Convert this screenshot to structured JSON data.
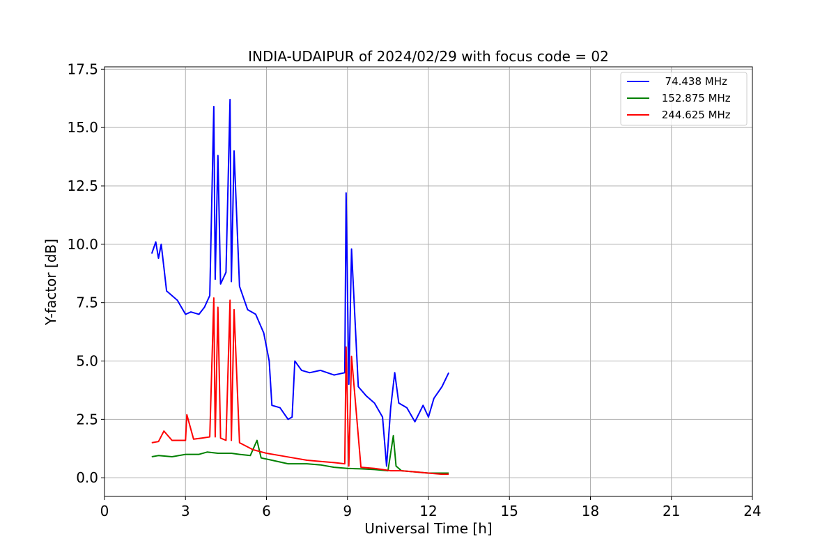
{
  "chart_data": {
    "type": "line",
    "title": "INDIA-UDAIPUR of 2024/02/29 with focus code = 02",
    "xlabel": "Universal Time [h]",
    "ylabel": "Y-factor [dB]",
    "xlim": [
      0,
      24
    ],
    "ylim": [
      -0.8,
      17.6
    ],
    "xticks": [
      0,
      3,
      6,
      9,
      12,
      15,
      18,
      21,
      24
    ],
    "xtick_labels": [
      "0",
      "3",
      "6",
      "9",
      "12",
      "15",
      "18",
      "21",
      "24"
    ],
    "yticks": [
      0,
      2.5,
      5,
      7.5,
      10,
      12.5,
      15,
      17.5
    ],
    "ytick_labels": [
      "0.0",
      "2.5",
      "5.0",
      "7.5",
      "10.0",
      "12.5",
      "15.0",
      "17.5"
    ],
    "grid": true,
    "legend_position": "top-right",
    "series": [
      {
        "name": "  74.438 MHz",
        "color": "#0000ff",
        "x": [
          1.75,
          1.9,
          2.0,
          2.1,
          2.2,
          2.3,
          2.5,
          2.7,
          2.9,
          3.0,
          3.2,
          3.5,
          3.7,
          3.9,
          4.05,
          4.1,
          4.2,
          4.3,
          4.5,
          4.65,
          4.7,
          4.8,
          5.0,
          5.3,
          5.6,
          5.9,
          6.1,
          6.2,
          6.5,
          6.8,
          6.95,
          7.05,
          7.3,
          7.6,
          8.0,
          8.5,
          8.9,
          8.95,
          9.05,
          9.15,
          9.4,
          9.7,
          10.0,
          10.3,
          10.45,
          10.6,
          10.75,
          10.9,
          11.2,
          11.5,
          11.8,
          12.0,
          12.2,
          12.5,
          12.75
        ],
        "y": [
          9.6,
          10.1,
          9.4,
          10.0,
          9.0,
          8.0,
          7.8,
          7.6,
          7.2,
          7.0,
          7.1,
          7.0,
          7.3,
          7.8,
          15.9,
          8.5,
          13.8,
          8.3,
          8.8,
          16.2,
          8.4,
          14.0,
          8.2,
          7.2,
          7.0,
          6.2,
          5.0,
          3.1,
          3.0,
          2.5,
          2.6,
          5.0,
          4.6,
          4.5,
          4.6,
          4.4,
          4.5,
          12.2,
          4.0,
          9.8,
          3.9,
          3.5,
          3.2,
          2.6,
          0.5,
          3.0,
          4.5,
          3.2,
          3.0,
          2.4,
          3.1,
          2.6,
          3.4,
          3.9,
          4.5
        ]
      },
      {
        "name": " 152.875 MHz",
        "color": "#008000",
        "x": [
          1.75,
          2.0,
          2.5,
          3.0,
          3.5,
          3.8,
          4.2,
          4.7,
          5.0,
          5.4,
          5.65,
          5.8,
          6.2,
          6.8,
          7.5,
          8.0,
          8.5,
          9.0,
          9.5,
          10.0,
          10.5,
          10.7,
          10.8,
          11.0,
          11.5,
          12.0,
          12.4,
          12.75
        ],
        "y": [
          0.9,
          0.95,
          0.9,
          1.0,
          1.0,
          1.1,
          1.05,
          1.05,
          1.0,
          0.95,
          1.6,
          0.85,
          0.75,
          0.6,
          0.6,
          0.55,
          0.45,
          0.4,
          0.38,
          0.35,
          0.3,
          1.8,
          0.5,
          0.3,
          0.25,
          0.2,
          0.2,
          0.2
        ]
      },
      {
        "name": " 244.625 MHz",
        "color": "#ff0000",
        "x": [
          1.75,
          2.0,
          2.2,
          2.5,
          3.0,
          3.05,
          3.3,
          3.6,
          3.9,
          4.05,
          4.1,
          4.2,
          4.3,
          4.5,
          4.65,
          4.7,
          4.8,
          5.0,
          5.5,
          6.0,
          6.5,
          7.0,
          7.5,
          8.0,
          8.5,
          8.9,
          8.95,
          9.05,
          9.15,
          9.5,
          10.0,
          10.3,
          10.6,
          11.0,
          11.5,
          12.0,
          12.5,
          12.75
        ],
        "y": [
          1.5,
          1.55,
          2.0,
          1.6,
          1.6,
          2.7,
          1.65,
          1.7,
          1.75,
          7.7,
          1.75,
          7.3,
          1.7,
          1.6,
          7.6,
          1.6,
          7.2,
          1.5,
          1.2,
          1.05,
          0.95,
          0.85,
          0.75,
          0.7,
          0.65,
          0.6,
          5.6,
          0.5,
          5.2,
          0.45,
          0.4,
          0.35,
          0.3,
          0.3,
          0.25,
          0.2,
          0.15,
          0.15
        ]
      }
    ]
  }
}
